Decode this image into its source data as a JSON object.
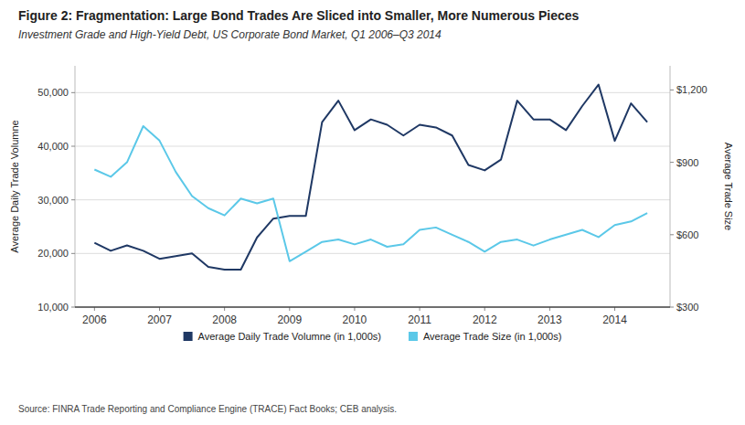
{
  "chart_data": {
    "type": "line",
    "title": "Figure 2: Fragmentation: Large Bond Trades Are Sliced into Smaller, More Numerous Pieces",
    "subtitle": "Investment Grade and High-Yield Debt, US Corporate Bond Market, Q1 2006–Q3 2014",
    "source": "Source: FINRA Trade Reporting and Compliance Engine (TRACE) Fact Books; CEB analysis.",
    "ylabel": "Average Daily Trade Volumne",
    "y2label": "Average Trade Size",
    "x": [
      2006.0,
      2006.25,
      2006.5,
      2006.75,
      2007.0,
      2007.25,
      2007.5,
      2007.75,
      2008.0,
      2008.25,
      2008.5,
      2008.75,
      2009.0,
      2009.25,
      2009.5,
      2009.75,
      2010.0,
      2010.25,
      2010.5,
      2010.75,
      2011.0,
      2011.25,
      2011.5,
      2011.75,
      2012.0,
      2012.25,
      2012.5,
      2012.75,
      2013.0,
      2013.25,
      2013.5,
      2013.75,
      2014.0,
      2014.25,
      2014.5
    ],
    "xlim": [
      2005.7,
      2014.85
    ],
    "xticks": [
      2006,
      2007,
      2008,
      2009,
      2010,
      2011,
      2012,
      2013,
      2014
    ],
    "ylim": [
      10000,
      55000
    ],
    "yticks": [
      {
        "value": 10000,
        "label": "10,000"
      },
      {
        "value": 20000,
        "label": "20,000"
      },
      {
        "value": 30000,
        "label": "30,000"
      },
      {
        "value": 40000,
        "label": "40,000"
      },
      {
        "value": 50000,
        "label": "50,000"
      }
    ],
    "y2lim": [
      300,
      1300
    ],
    "y2ticks": [
      {
        "value": 300,
        "label": "$300"
      },
      {
        "value": 600,
        "label": "$600"
      },
      {
        "value": 900,
        "label": "$900"
      },
      {
        "value": 1200,
        "label": "$1,200"
      }
    ],
    "grid": true,
    "legend": "bottom",
    "series": [
      {
        "name": "Average Daily Trade Volumne (in 1,000s)",
        "color": "#1F3864",
        "values": [
          22000,
          20500,
          21500,
          20500,
          19000,
          19500,
          20000,
          17500,
          17000,
          17000,
          23000,
          26500,
          27000,
          27000,
          44500,
          48500,
          43000,
          45000,
          44000,
          42000,
          44000,
          43500,
          42000,
          36500,
          35500,
          37500,
          48500,
          45000,
          45000,
          43000,
          47500,
          51500,
          41000,
          48000,
          44500
        ]
      },
      {
        "name": "Average Trade Size (in 1,000s)",
        "color": "#5BC8E8",
        "axis": "y2",
        "values": [
          870,
          840,
          900,
          1050,
          990,
          860,
          760,
          710,
          680,
          750,
          730,
          750,
          490,
          530,
          570,
          580,
          560,
          580,
          550,
          560,
          620,
          630,
          600,
          570,
          530,
          570,
          580,
          555,
          580,
          600,
          620,
          590,
          640,
          655,
          690
        ]
      }
    ]
  }
}
